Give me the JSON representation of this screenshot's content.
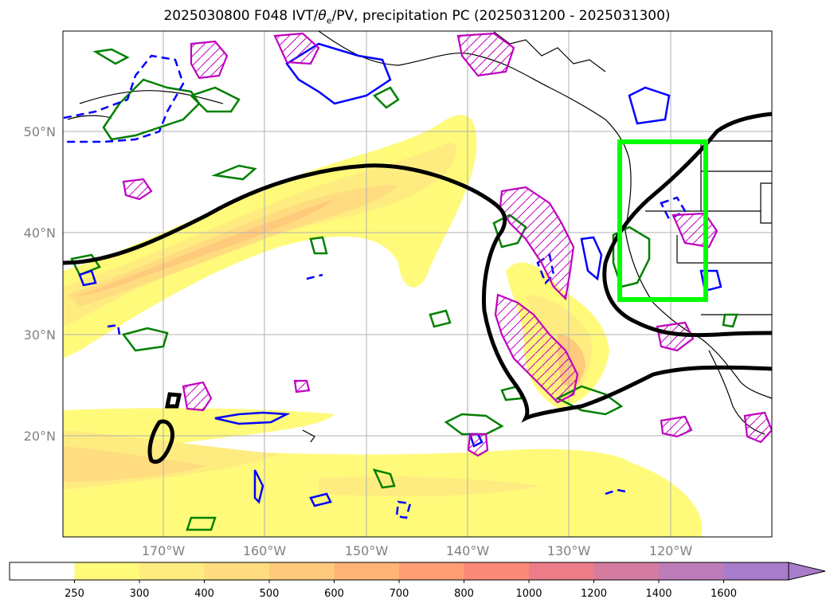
{
  "title": {
    "prefix": "2025030800 F048 IVT/",
    "theta": "θ",
    "theta_sub": "e",
    "suffix": "/PV, precipitation PC (2025031200 - 2025031300)"
  },
  "map": {
    "lat_ticks": [
      "50°N",
      "40°N",
      "30°N",
      "20°N"
    ],
    "lon_ticks": [
      "170°W",
      "160°W",
      "150°W",
      "140°W",
      "130°W",
      "120°W"
    ],
    "gridlines": true,
    "colors": {
      "land_outline": "#000000",
      "gridline": "#b0b0b0",
      "contour_black": "#000000",
      "contour_green": "#008000",
      "contour_blue": "#0000ff",
      "contour_magenta": "#bf00bf",
      "target_box": "#00ff00"
    }
  },
  "colorbar": {
    "labels": [
      "250",
      "300",
      "400",
      "500",
      "600",
      "700",
      "800",
      "1000",
      "1200",
      "1400",
      "1600"
    ],
    "colors": [
      "#ffffff",
      "#fffa7a",
      "#ffec80",
      "#ffdc80",
      "#ffca7c",
      "#ffb476",
      "#ff9e74",
      "#fb8a78",
      "#ec7c88",
      "#d47ca0",
      "#bc7cba",
      "#a87cca"
    ],
    "extend": "max"
  }
}
